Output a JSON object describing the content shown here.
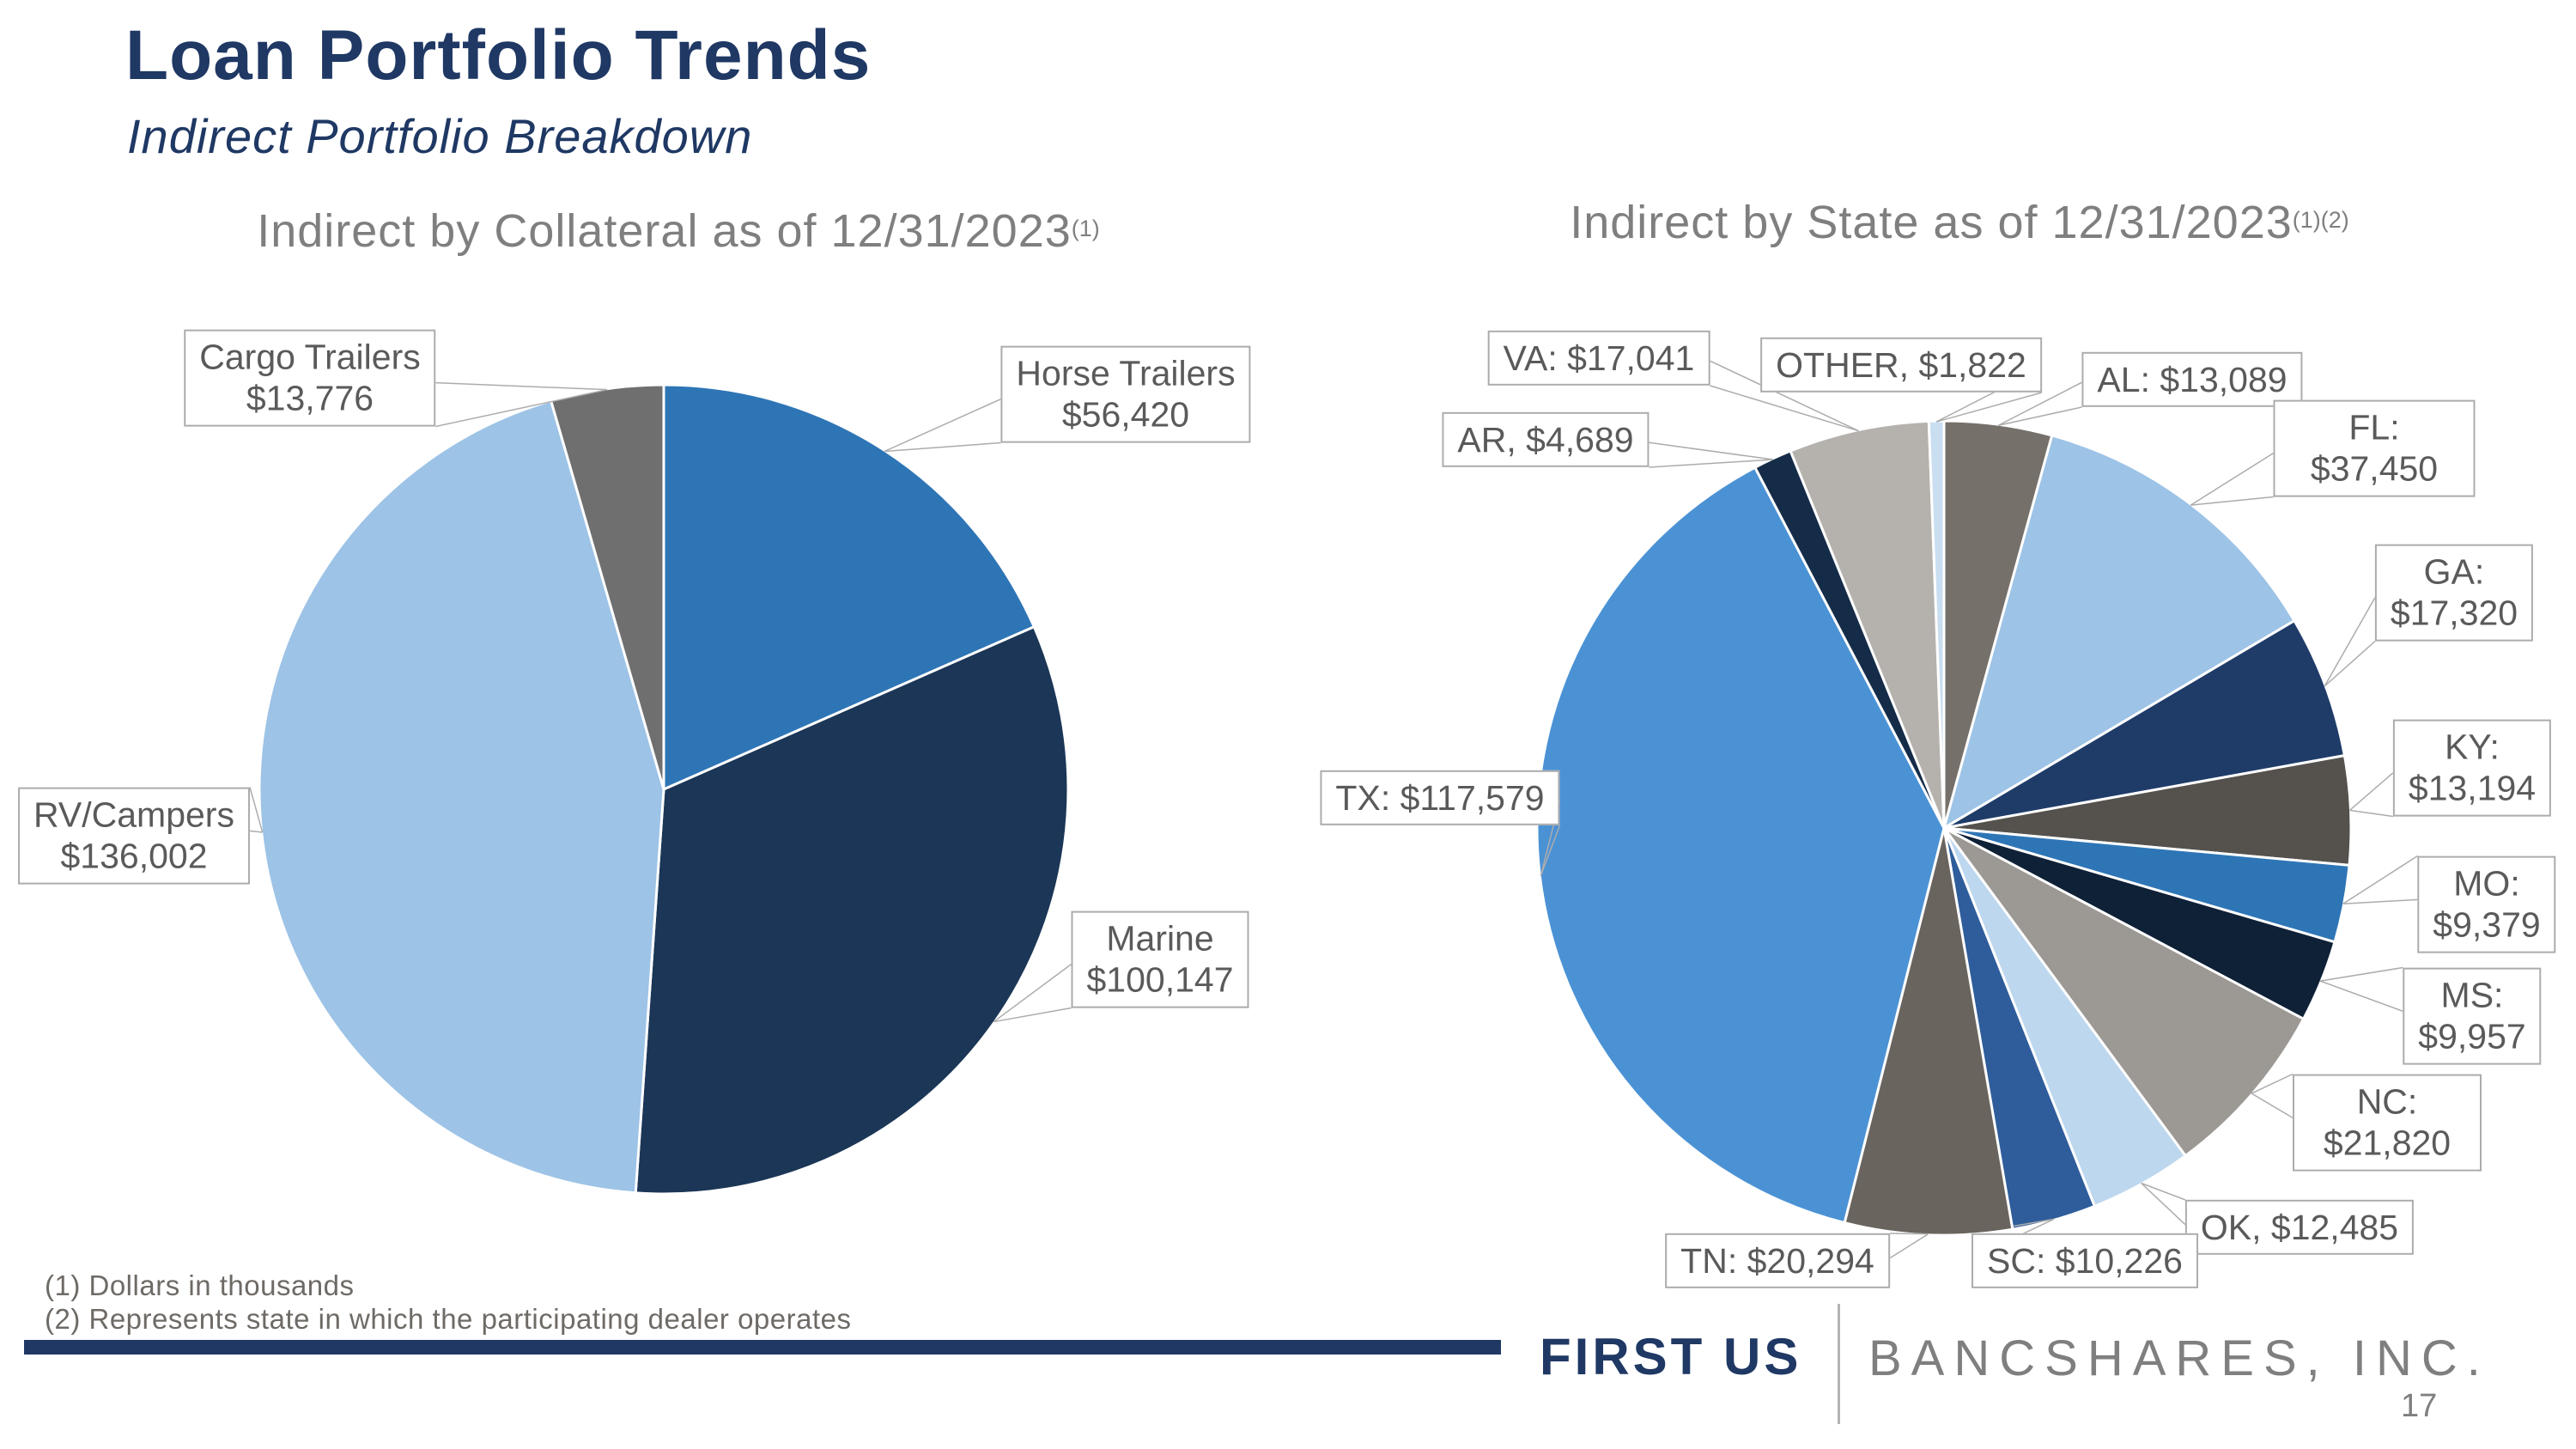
{
  "page": {
    "title": "Loan Portfolio Trends",
    "subtitle": "Indirect Portfolio Breakdown",
    "footnotes": [
      "(1) Dollars in thousands",
      "(2) Represents state in which the participating dealer operates"
    ],
    "logo": {
      "primary": "FIRST US",
      "secondary": "BANCSHARES, INC."
    },
    "page_number": "17",
    "colors": {
      "brand_navy": "#1F3864",
      "title_gray": "#7F7F7F",
      "callout_border": "#ACACAC",
      "callout_text": "#5A5A5A",
      "leader_line": "#ACACAC"
    }
  },
  "chart_data": [
    {
      "type": "pie",
      "title": "Indirect by Collateral as of 12/31/2023",
      "title_superscript": "(1)",
      "units": "dollars in thousands",
      "total": 306345,
      "start_angle_deg": 0,
      "direction": "clockwise",
      "slices": [
        {
          "label": "Horse Trailers",
          "value": 56420,
          "callout": [
            "Horse Trailers",
            "$56,420"
          ],
          "color": "#2E75B6"
        },
        {
          "label": "Marine",
          "value": 100147,
          "callout": [
            "Marine",
            "$100,147"
          ],
          "color": "#1B3656"
        },
        {
          "label": "RV/Campers",
          "value": 136002,
          "callout": [
            "RV/Campers",
            "$136,002"
          ],
          "color": "#9DC3E6"
        },
        {
          "label": "Cargo Trailers",
          "value": 13776,
          "callout": [
            "Cargo Trailers",
            "$13,776"
          ],
          "color": "#6F6F6F"
        }
      ]
    },
    {
      "type": "pie",
      "title": "Indirect by State as of 12/31/2023",
      "title_superscript": "(1)(2)",
      "units": "dollars in thousands",
      "total": 306345,
      "start_angle_deg": 0,
      "direction": "clockwise",
      "slices": [
        {
          "label": "AL",
          "value": 13089,
          "callout": [
            "AL: $13,089"
          ],
          "color": "#76706B"
        },
        {
          "label": "FL",
          "value": 37450,
          "callout": [
            "FL: $37,450"
          ],
          "color": "#9DC3E6"
        },
        {
          "label": "GA",
          "value": 17320,
          "callout": [
            "GA: $17,320"
          ],
          "color": "#1F3C69"
        },
        {
          "label": "KY",
          "value": 13194,
          "callout": [
            "KY: $13,194"
          ],
          "color": "#55524D"
        },
        {
          "label": "MO",
          "value": 9379,
          "callout": [
            "MO: $9,379"
          ],
          "color": "#2E75B6"
        },
        {
          "label": "MS",
          "value": 9957,
          "callout": [
            "MS: $9,957"
          ],
          "color": "#0F2137"
        },
        {
          "label": "NC",
          "value": 21820,
          "callout": [
            "NC: $21,820"
          ],
          "color": "#9C9995"
        },
        {
          "label": "OK",
          "value": 12485,
          "callout": [
            "OK, $12,485"
          ],
          "color": "#BDD7EE"
        },
        {
          "label": "SC",
          "value": 10226,
          "callout": [
            "SC: $10,226"
          ],
          "color": "#2F5D9B"
        },
        {
          "label": "TN",
          "value": 20294,
          "callout": [
            "TN: $20,294"
          ],
          "color": "#6A645E"
        },
        {
          "label": "TX",
          "value": 117579,
          "callout": [
            "TX: $117,579"
          ],
          "color": "#4B92D5"
        },
        {
          "label": "AR",
          "value": 4689,
          "callout": [
            "AR, $4,689"
          ],
          "color": "#152C49"
        },
        {
          "label": "VA",
          "value": 17041,
          "callout": [
            "VA: $17,041"
          ],
          "color": "#B5B2AE"
        },
        {
          "label": "OTHER",
          "value": 1822,
          "callout": [
            "OTHER, $1,822"
          ],
          "color": "#C9DEF1"
        }
      ]
    }
  ]
}
